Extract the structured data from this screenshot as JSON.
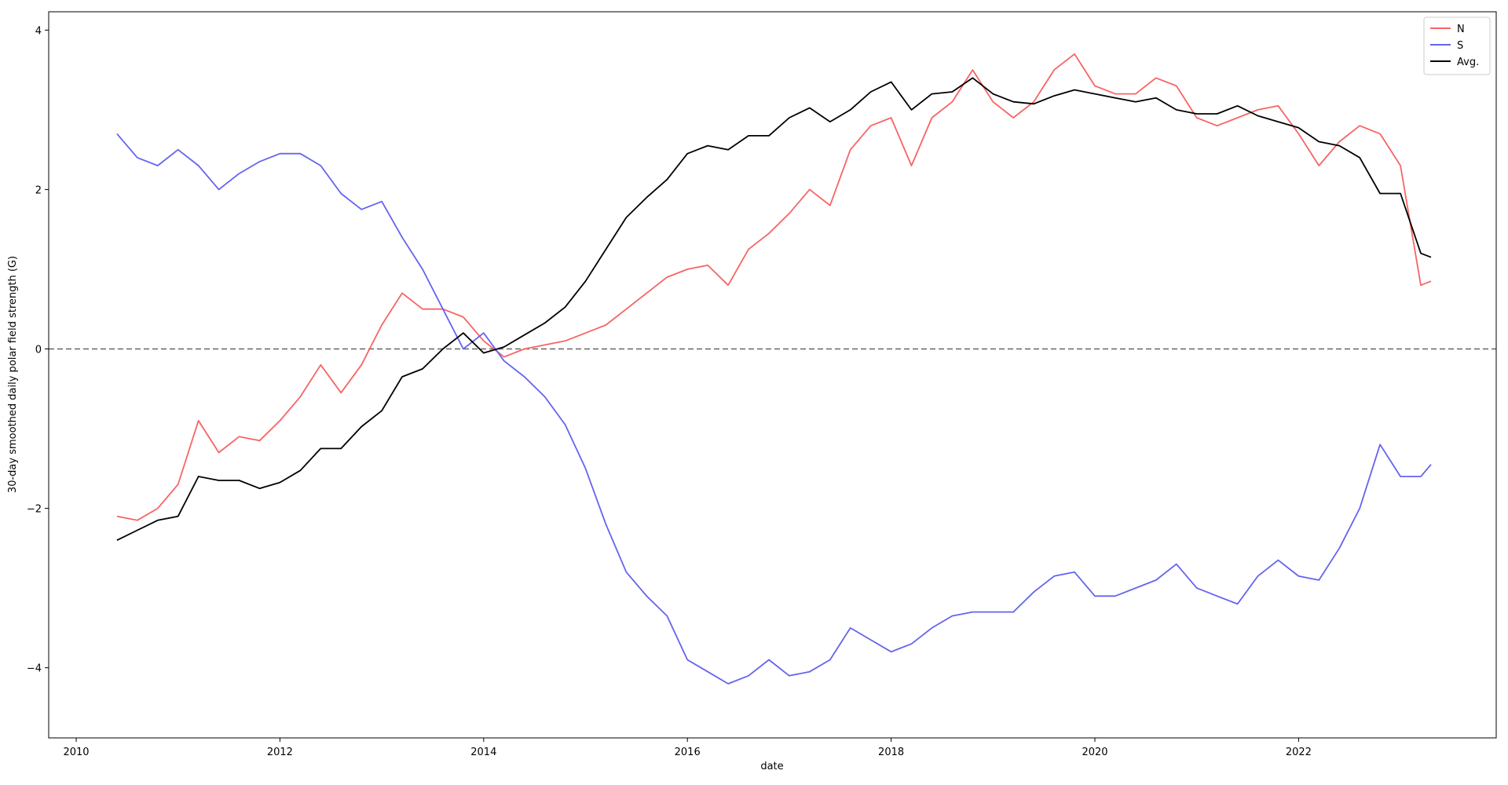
{
  "chart_data": {
    "type": "line",
    "xlabel": "date",
    "ylabel": "30-day smoothed daily polar field strength (G)",
    "x": [
      2010.4,
      2010.6,
      2010.8,
      2011.0,
      2011.2,
      2011.4,
      2011.6,
      2011.8,
      2012.0,
      2012.2,
      2012.4,
      2012.6,
      2012.8,
      2013.0,
      2013.2,
      2013.4,
      2013.6,
      2013.8,
      2014.0,
      2014.2,
      2014.4,
      2014.6,
      2014.8,
      2015.0,
      2015.2,
      2015.4,
      2015.6,
      2015.8,
      2016.0,
      2016.2,
      2016.4,
      2016.6,
      2016.8,
      2017.0,
      2017.2,
      2017.4,
      2017.6,
      2017.8,
      2018.0,
      2018.2,
      2018.4,
      2018.6,
      2018.8,
      2019.0,
      2019.2,
      2019.4,
      2019.6,
      2019.8,
      2020.0,
      2020.2,
      2020.4,
      2020.6,
      2020.8,
      2021.0,
      2021.2,
      2021.4,
      2021.6,
      2021.8,
      2022.0,
      2022.2,
      2022.4,
      2022.6,
      2022.8,
      2023.0,
      2023.2,
      2023.3
    ],
    "series": [
      {
        "name": "N",
        "color": "#f86464",
        "values": [
          -2.1,
          -2.15,
          -2.0,
          -1.7,
          -0.9,
          -1.3,
          -1.1,
          -1.15,
          -0.9,
          -0.6,
          -0.2,
          -0.55,
          -0.2,
          0.3,
          0.7,
          0.5,
          0.5,
          0.4,
          0.1,
          -0.1,
          0.0,
          0.05,
          0.1,
          0.2,
          0.3,
          0.5,
          0.7,
          0.9,
          1.0,
          1.05,
          0.8,
          1.25,
          1.45,
          1.7,
          2.0,
          1.8,
          2.5,
          2.8,
          2.9,
          2.3,
          2.9,
          3.1,
          3.5,
          3.1,
          2.9,
          3.1,
          3.5,
          3.7,
          3.3,
          3.2,
          3.2,
          3.4,
          3.3,
          2.9,
          2.8,
          2.9,
          3.0,
          3.05,
          2.7,
          2.3,
          2.6,
          2.8,
          2.7,
          2.3,
          0.8,
          0.85
        ]
      },
      {
        "name": "S",
        "color": "#6464f0",
        "values": [
          2.7,
          2.4,
          2.3,
          2.5,
          2.3,
          2.0,
          2.2,
          2.35,
          2.45,
          2.45,
          2.3,
          1.95,
          1.75,
          1.85,
          1.4,
          1.0,
          0.5,
          0.0,
          0.2,
          -0.15,
          -0.35,
          -0.6,
          -0.95,
          -1.5,
          -2.2,
          -2.8,
          -3.1,
          -3.35,
          -3.9,
          -4.05,
          -4.2,
          -4.1,
          -3.9,
          -4.1,
          -4.05,
          -3.9,
          -3.5,
          -3.65,
          -3.8,
          -3.7,
          -3.5,
          -3.35,
          -3.3,
          -3.3,
          -3.3,
          -3.05,
          -2.85,
          -2.8,
          -3.1,
          -3.1,
          -3.0,
          -2.9,
          -2.7,
          -3.0,
          -3.1,
          -3.2,
          -2.85,
          -2.65,
          -2.85,
          -2.9,
          -2.5,
          -2.0,
          -1.2,
          -1.6,
          -1.6,
          -1.45
        ]
      },
      {
        "name": "Avg.",
        "color": "#000000",
        "values": [
          -2.4,
          -2.275,
          -2.15,
          -2.1,
          -1.6,
          -1.65,
          -1.65,
          -1.75,
          -1.675,
          -1.525,
          -1.25,
          -1.25,
          -0.975,
          -0.775,
          -0.35,
          -0.25,
          0,
          0.2,
          -0.05,
          0.025,
          0.175,
          0.325,
          0.525,
          0.85,
          1.25,
          1.65,
          1.9,
          2.125,
          2.45,
          2.55,
          2.5,
          2.675,
          2.675,
          2.9,
          3.025,
          2.85,
          3.0,
          3.225,
          3.35,
          3.0,
          3.2,
          3.225,
          3.4,
          3.2,
          3.1,
          3.075,
          3.175,
          3.25,
          3.2,
          3.15,
          3.1,
          3.15,
          3.0,
          2.95,
          2.95,
          3.05,
          2.925,
          2.85,
          2.775,
          2.6,
          2.55,
          2.4,
          1.95,
          1.95,
          1.2,
          1.15
        ]
      }
    ],
    "xlim": [
      2009.73,
      2023.94
    ],
    "xticks": [
      2010,
      2012,
      2014,
      2016,
      2018,
      2020,
      2022
    ],
    "ylim": [
      -4.88,
      4.23
    ],
    "yticks": [
      {
        "value": -4,
        "label": "−4"
      },
      {
        "value": -2,
        "label": "−2"
      },
      0,
      2,
      4
    ],
    "hline": 0,
    "legend": "upper right"
  }
}
